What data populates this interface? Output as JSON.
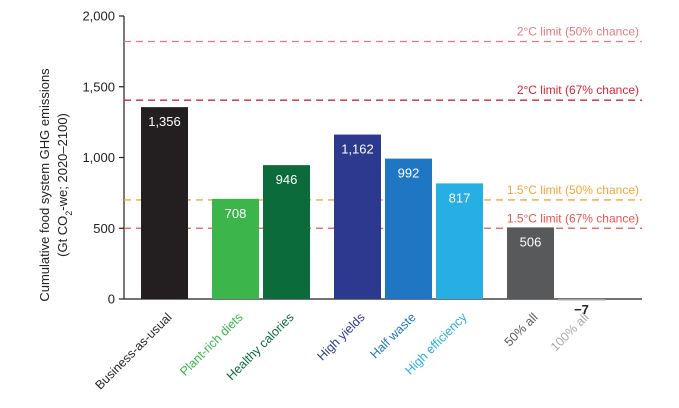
{
  "chart_data": {
    "type": "bar",
    "ylabel_line1": "Cumulative food system GHG emissions",
    "ylabel_line2_prefix": "(Gt CO",
    "ylabel_line2_sub": "2",
    "ylabel_line2_suffix": "-we; 2020–2100)",
    "ylim": [
      0,
      2000
    ],
    "yticks": [
      0,
      500,
      1000,
      1500,
      2000
    ],
    "ytick_labels": [
      "0",
      "500",
      "1,000",
      "1,500",
      "2,000"
    ],
    "grid": false,
    "categories": [
      "Business-as-usual",
      "Plant-rich diets",
      "Healthy calories",
      "High yields",
      "Half waste",
      "High efficiency",
      "50% all",
      "100% all"
    ],
    "values": [
      1356,
      708,
      946,
      1162,
      992,
      817,
      506,
      -7
    ],
    "value_labels": [
      "1,356",
      "708",
      "946",
      "1,162",
      "992",
      "817",
      "506",
      "−7"
    ],
    "bar_colors": [
      "#231f20",
      "#3cb64a",
      "#0c6b3a",
      "#2b3a8f",
      "#1f77c3",
      "#27aee3",
      "#58595b",
      "#a7a9ac"
    ],
    "category_label_colors": [
      "#231f20",
      "#3cb64a",
      "#0c6b3a",
      "#2b3a8f",
      "#1f77c3",
      "#27aee3",
      "#58595b",
      "#a7a9ac"
    ],
    "limits": [
      {
        "label": "2°C limit (50% chance)",
        "value": 1820,
        "color": "#e8797e"
      },
      {
        "label": "2°C limit (67% chance)",
        "value": 1405,
        "color": "#d72638"
      },
      {
        "label": "1.5°C limit (50% chance)",
        "value": 700,
        "color": "#f7a43a"
      },
      {
        "label": "1.5°C limit (67% chance)",
        "value": 500,
        "color": "#e8564f"
      }
    ]
  }
}
